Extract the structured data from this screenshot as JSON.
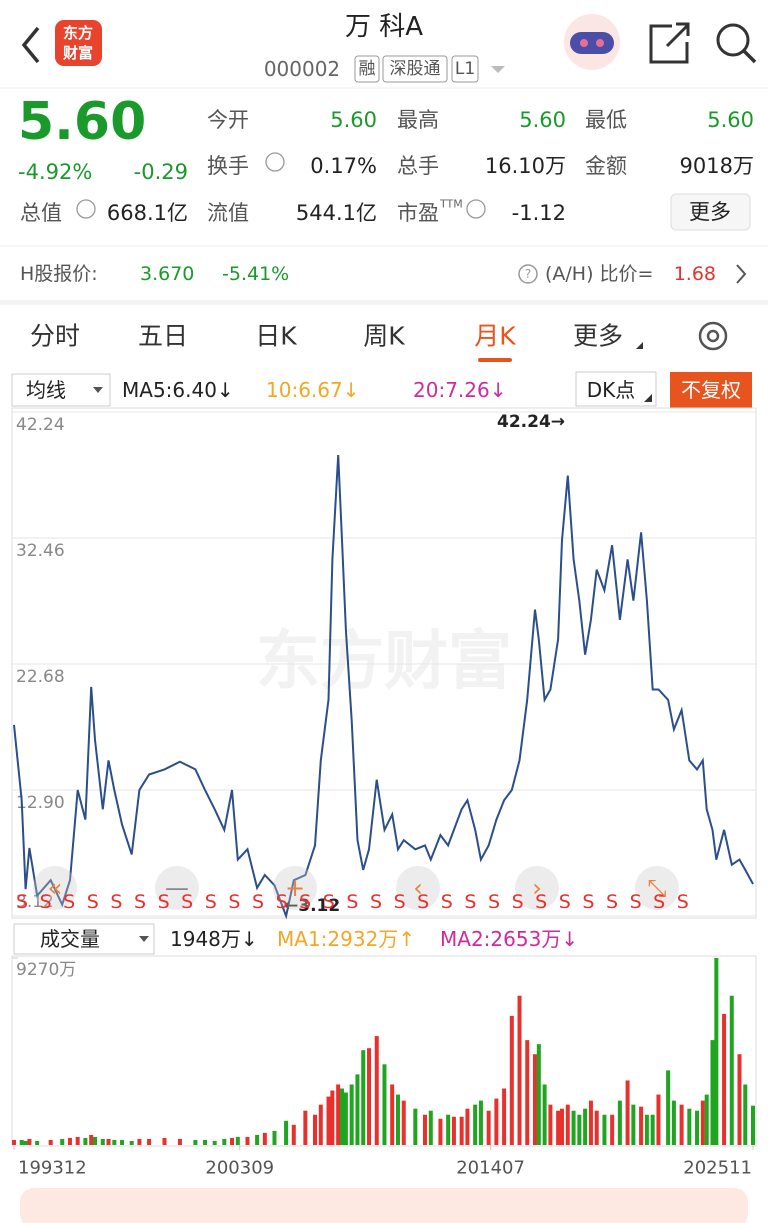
{
  "header": {
    "title": "万 科A",
    "code": "000002",
    "tags": [
      "融",
      "深股通",
      "L1"
    ],
    "logo": [
      "东方",
      "财富"
    ]
  },
  "quote": {
    "price": "5.60",
    "change_pct": "-4.92%",
    "change": "-0.29",
    "stats": [
      {
        "label": "今开",
        "value": "5.60"
      },
      {
        "label": "最高",
        "value": "5.60"
      },
      {
        "label": "最低",
        "value": "5.60"
      },
      {
        "label": "换手",
        "value": "0.17%"
      },
      {
        "label": "总手",
        "value": "16.10万"
      },
      {
        "label": "金额",
        "value": "9018万"
      },
      {
        "label": "总值",
        "value": "668.1亿"
      },
      {
        "label": "流值",
        "value": "544.1亿"
      },
      {
        "label": "市盈",
        "value": "-1.12"
      }
    ],
    "ttm": "TTM",
    "more": "更多"
  },
  "h_share": {
    "label": "H股报价:",
    "price": "3.670",
    "change_pct": "-5.41%",
    "ah_label": "(A/H) 比价=",
    "ah_value": "1.68"
  },
  "tabs": {
    "items": [
      "分时",
      "五日",
      "日K",
      "周K",
      "月K",
      "更多"
    ],
    "active": 4
  },
  "price_toolbar": {
    "ma_select": "均线",
    "ma5": "MA5:6.40↓",
    "ma10": "10:6.67↓",
    "ma20": "20:7.26↓",
    "dk": "DK点",
    "fq": "不复权"
  },
  "volume_toolbar": {
    "select": "成交量",
    "current": "1948万↓",
    "ma1": "MA1:2932万↑",
    "ma2": "MA2:2653万↓"
  },
  "chart_data": [
    {
      "type": "line",
      "watermark": "东方财富",
      "color": "#2b4e8c",
      "grid": true,
      "signal": "S",
      "annotations": [
        {
          "text": "42.24→"
        },
        {
          "text": "←3.12"
        }
      ],
      "xlim": [
        "199312",
        "202511"
      ],
      "ylim": [
        3.12,
        42.24
      ],
      "yticks": [
        42.24,
        32.46,
        22.68,
        {
          "value": 12.9,
          "label": "12.90"
        },
        3.12
      ],
      "x": [
        "199312",
        "199404",
        "199406",
        "199408",
        "199412",
        "199507",
        "199601",
        "199605",
        "199609",
        "199701",
        "199704",
        "199706",
        "199710",
        "199801",
        "199804",
        "199808",
        "199901",
        "199905",
        "199910",
        "200006",
        "200102",
        "200110",
        "200203",
        "200208",
        "200301",
        "200305",
        "200308",
        "200401",
        "200406",
        "200410",
        "200503",
        "200509",
        "200601",
        "200607",
        "200612",
        "200703",
        "200707",
        "200709",
        "200712",
        "200802",
        "200804",
        "200807",
        "200810",
        "200901",
        "200904",
        "200908",
        "200912",
        "201004",
        "201007",
        "201010",
        "201104",
        "201109",
        "201112",
        "201205",
        "201209",
        "201212",
        "201304",
        "201307",
        "201311",
        "201402",
        "201406",
        "201410",
        "201502",
        "201506",
        "201510",
        "201602",
        "201606",
        "201608",
        "201611",
        "201702",
        "201706",
        "201708",
        "201711",
        "201802",
        "201805",
        "201808",
        "201811",
        "201902",
        "201906",
        "201910",
        "202002",
        "202006",
        "202009",
        "202101",
        "202104",
        "202107",
        "202110",
        "202203",
        "202206",
        "202210",
        "202302",
        "202306",
        "202309",
        "202311",
        "202402",
        "202404",
        "202408",
        "202412",
        "202504",
        "202507",
        "202511"
      ],
      "values": [
        17.95,
        12.1,
        5.2,
        8.4,
        4.7,
        5.9,
        4.0,
        5.9,
        12.9,
        10.6,
        20.9,
        16.8,
        11.4,
        15.2,
        12.9,
        10.2,
        7.9,
        12.9,
        14.1,
        14.5,
        15.1,
        14.5,
        12.9,
        11.4,
        9.8,
        12.9,
        7.5,
        8.3,
        5.3,
        6.3,
        5.5,
        3.12,
        5.9,
        6.3,
        8.6,
        15.2,
        19.9,
        30.8,
        38.9,
        32.3,
        25.3,
        18.3,
        9.0,
        6.7,
        8.3,
        13.7,
        9.8,
        11.0,
        8.3,
        9.0,
        8.3,
        8.6,
        7.5,
        9.4,
        8.6,
        9.8,
        11.4,
        12.1,
        9.8,
        7.5,
        8.6,
        10.6,
        12.1,
        12.9,
        15.2,
        19.9,
        26.9,
        24.6,
        19.9,
        20.7,
        24.6,
        32.3,
        37.3,
        30.8,
        27.6,
        23.4,
        26.1,
        30.0,
        28.4,
        31.9,
        26.1,
        30.8,
        27.6,
        32.9,
        27.6,
        20.7,
        20.7,
        19.9,
        17.6,
        19.1,
        15.2,
        14.5,
        15.2,
        11.4,
        9.8,
        7.5,
        9.8,
        7.1,
        7.5,
        6.7,
        5.6
      ]
    },
    {
      "type": "bar",
      "up_color": "#e8312d",
      "down_color": "#1fa51f",
      "xlim": [
        "199312",
        "202511"
      ],
      "xticks": [
        "199312",
        "200309",
        "201407",
        "202511"
      ],
      "ylim": [
        0,
        9270
      ],
      "yticks": [
        {
          "value": 9270,
          "label": "9270万"
        }
      ],
      "x": [
        "199312",
        "199404",
        "199406",
        "199408",
        "199412",
        "199507",
        "199601",
        "199605",
        "199609",
        "199701",
        "199704",
        "199706",
        "199710",
        "199801",
        "199804",
        "199808",
        "199901",
        "199905",
        "199910",
        "200006",
        "200102",
        "200110",
        "200203",
        "200208",
        "200301",
        "200305",
        "200308",
        "200401",
        "200406",
        "200410",
        "200503",
        "200509",
        "200601",
        "200607",
        "200612",
        "200703",
        "200707",
        "200709",
        "200712",
        "200802",
        "200804",
        "200807",
        "200810",
        "200901",
        "200904",
        "200908",
        "200912",
        "201004",
        "201007",
        "201010",
        "201104",
        "201109",
        "201112",
        "201205",
        "201209",
        "201212",
        "201304",
        "201307",
        "201311",
        "201402",
        "201406",
        "201410",
        "201502",
        "201506",
        "201510",
        "201602",
        "201606",
        "201608",
        "201611",
        "201702",
        "201706",
        "201708",
        "201711",
        "201802",
        "201805",
        "201808",
        "201811",
        "201902",
        "201906",
        "201910",
        "202002",
        "202006",
        "202009",
        "202101",
        "202104",
        "202107",
        "202110",
        "202203",
        "202206",
        "202210",
        "202302",
        "202306",
        "202309",
        "202311",
        "202402",
        "202404",
        "202408",
        "202412",
        "202504",
        "202507",
        "202511"
      ],
      "values": [
        250,
        250,
        200,
        300,
        200,
        250,
        300,
        350,
        400,
        350,
        500,
        400,
        300,
        300,
        250,
        250,
        200,
        300,
        300,
        350,
        300,
        250,
        250,
        200,
        300,
        350,
        400,
        400,
        500,
        600,
        700,
        1200,
        1000,
        1700,
        1500,
        2000,
        2400,
        2700,
        3000,
        2800,
        2600,
        3000,
        3500,
        4700,
        4800,
        5400,
        4000,
        3000,
        2500,
        2200,
        1800,
        1500,
        1700,
        1300,
        1500,
        1400,
        1400,
        1800,
        2000,
        2200,
        1700,
        2300,
        2800,
        6400,
        7400,
        5200,
        4500,
        5000,
        3000,
        2000,
        1700,
        1800,
        2000,
        1700,
        1500,
        1800,
        2200,
        1700,
        1500,
        1500,
        2200,
        3200,
        2000,
        1900,
        1500,
        1500,
        2500,
        3700,
        2200,
        2000,
        1800,
        1700,
        2200,
        2500,
        5200,
        9270,
        6500,
        7400,
        4500,
        3000,
        1948
      ]
    }
  ]
}
